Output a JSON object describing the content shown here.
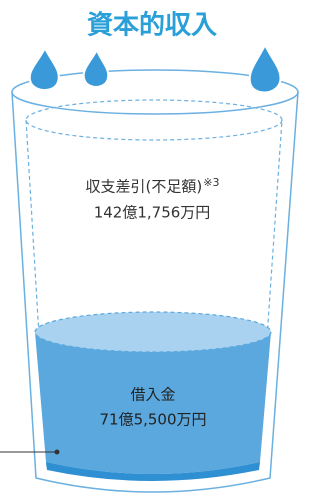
{
  "title": "資本的収入",
  "upper": {
    "label": "収支差引(不足額)",
    "note": "※3",
    "amount": "142億1,756万円"
  },
  "lower": {
    "label": "借入金",
    "amount": "71億5,500万円"
  }
}
